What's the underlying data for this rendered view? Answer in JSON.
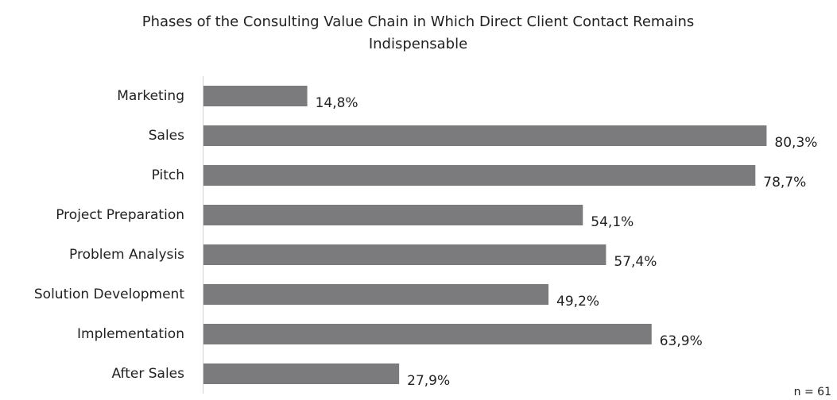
{
  "chart_data": {
    "type": "bar",
    "orientation": "horizontal",
    "title": "Phases of the Consulting Value Chain in Which Direct Client Contact Remains Indispensable",
    "categories": [
      "Marketing",
      "Sales",
      "Pitch",
      "Project Preparation",
      "Problem Analysis",
      "Solution Development",
      "Implementation",
      "After Sales"
    ],
    "values": [
      14.8,
      80.3,
      78.7,
      54.1,
      57.4,
      49.2,
      63.9,
      27.9
    ],
    "value_labels": [
      "14,8%",
      "80,3%",
      "78,7%",
      "54,1%",
      "57,4%",
      "49,2%",
      "63,9%",
      "27,9%"
    ],
    "color": "#7b7b7d",
    "xlim": [
      0,
      90
    ],
    "annotation": "n = 61"
  }
}
